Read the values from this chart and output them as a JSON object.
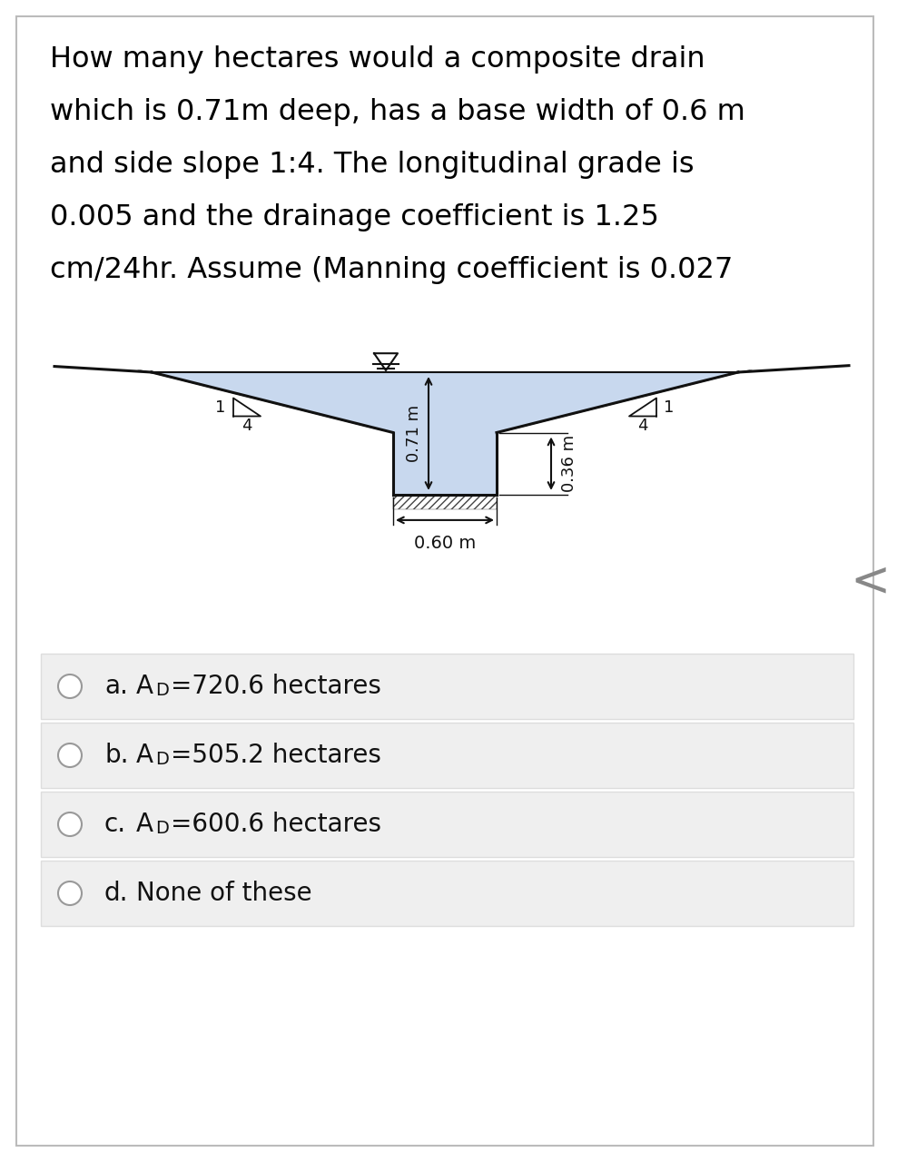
{
  "question_text_lines": [
    "How many hectares would a composite drain",
    "which is 0.71m deep, has a base width of 0.6 m",
    "and side slope 1:4. The longitudinal grade is",
    "0.005 and the drainage coefficient is 1.25",
    "cm/24hr. Assume (Manning coefficient is 0.027"
  ],
  "options": [
    {
      "label": "a.",
      "sub": "D",
      "value": "=720.6 hectares"
    },
    {
      "label": "b.",
      "sub": "D",
      "value": "=505.2 hectares"
    },
    {
      "label": "c.",
      "sub": "D",
      "value": "=600.6 hectares"
    },
    {
      "label": "d.",
      "sub": "",
      "value": "None of these"
    }
  ],
  "bg_color": "#ffffff",
  "diagram_fill_color": "#c8d8ee",
  "hatch_color": "#555555",
  "text_color": "#000000",
  "border_color": "#bbbbbb",
  "option_bg": "#efefef",
  "option_border": "#dddddd"
}
